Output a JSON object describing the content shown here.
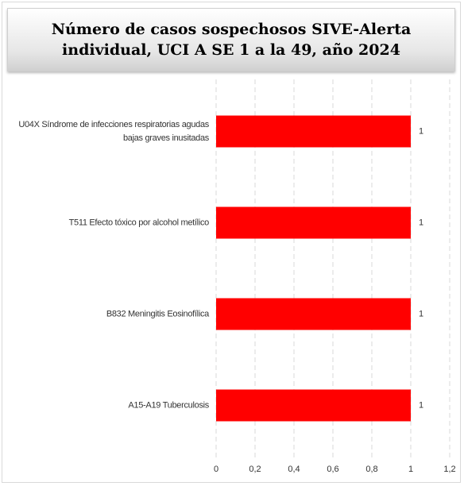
{
  "chart_data": {
    "type": "bar",
    "orientation": "horizontal",
    "title": "Número de casos sospechosos SIVE-Alerta individual, UCI A SE 1 a la 49,  año 2024",
    "categories": [
      "U04X Síndrome de infecciones respiratorias agudas bajas graves inusitadas",
      "T511 Efecto tóxico por alcohol metílico",
      "B832 Meningitis Eosinofílica",
      "A15-A19 Tuberculosis"
    ],
    "values": [
      1,
      1,
      1,
      1
    ],
    "color": "#ff0000",
    "xlim": [
      0,
      1.2
    ],
    "xticks": [
      0,
      {
        "value": 0.2,
        "label": "0,2"
      },
      {
        "value": 0.4,
        "label": "0,4"
      },
      {
        "value": 0.6,
        "label": "0,6"
      },
      {
        "value": 0.8,
        "label": "0,8"
      },
      1,
      {
        "value": 1.2,
        "label": "1,2"
      }
    ],
    "grid": true
  }
}
